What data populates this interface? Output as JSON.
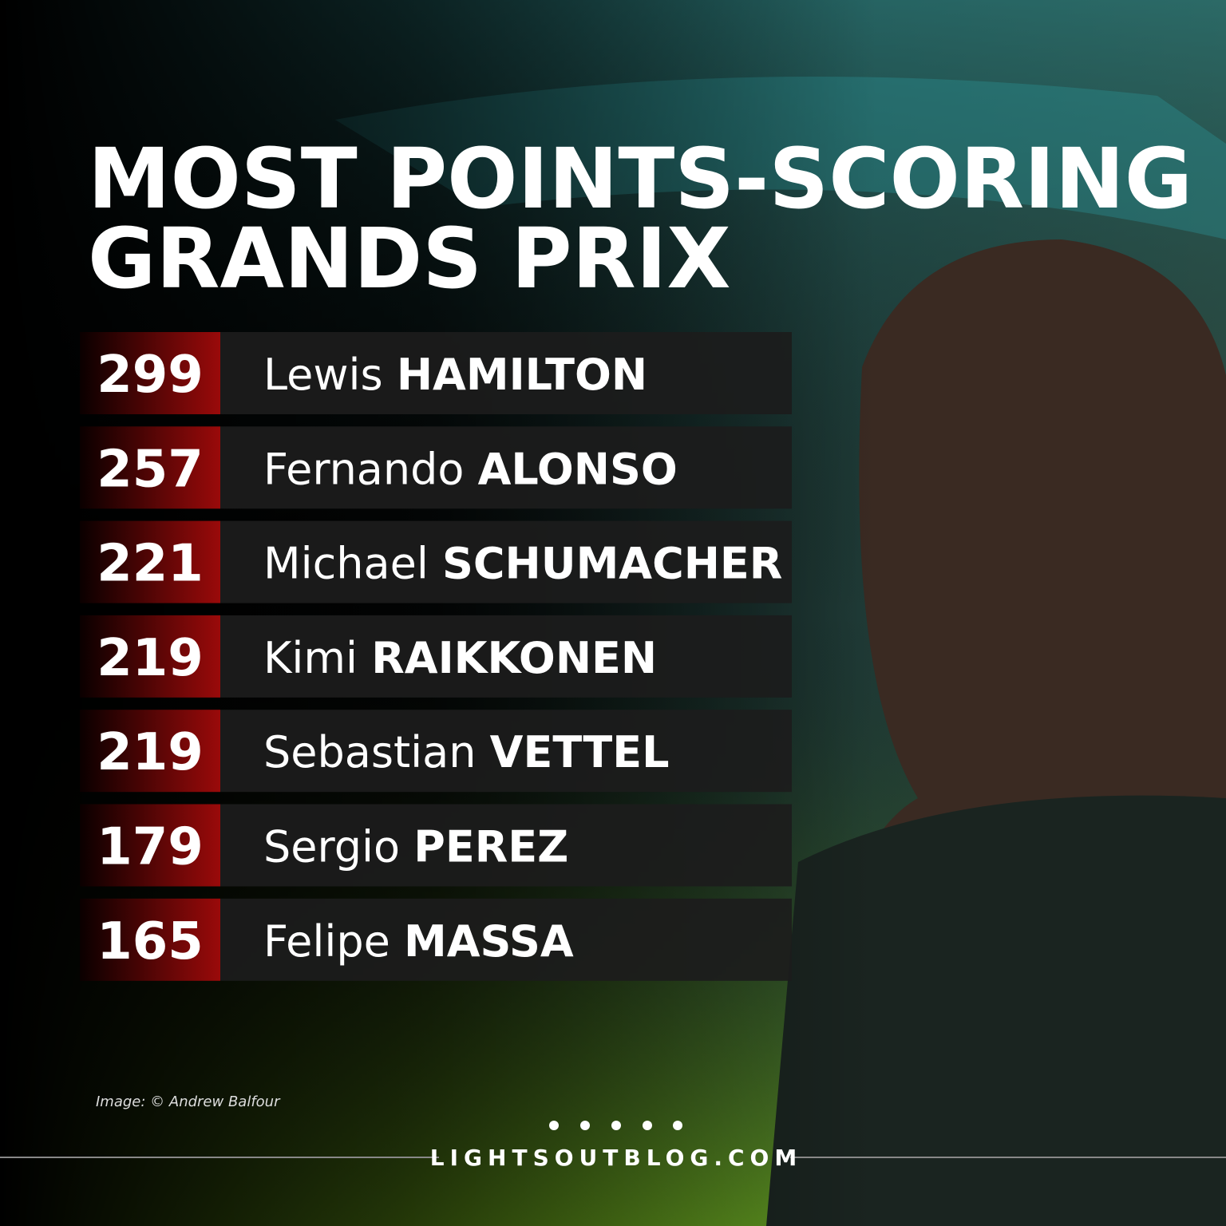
{
  "title": [
    "MOST POINTS-SCORING",
    "GRANDS PRIX"
  ],
  "rows": [
    {
      "points": 299,
      "first": "Lewis",
      "last": "HAMILTON"
    },
    {
      "points": 257,
      "first": "Fernando",
      "last": "ALONSO"
    },
    {
      "points": 221,
      "first": "Michael",
      "last": "SCHUMACHER"
    },
    {
      "points": 219,
      "first": "Kimi",
      "last": "RAIKKONEN"
    },
    {
      "points": 219,
      "first": "Sebastian",
      "last": "VETTEL"
    },
    {
      "points": 179,
      "first": "Sergio",
      "last": "PEREZ"
    },
    {
      "points": 165,
      "first": "Felipe",
      "last": "MASSA"
    }
  ],
  "credit": "Image: © Andrew Balfour",
  "site": "LIGHTSOUTBLOG.COM"
}
